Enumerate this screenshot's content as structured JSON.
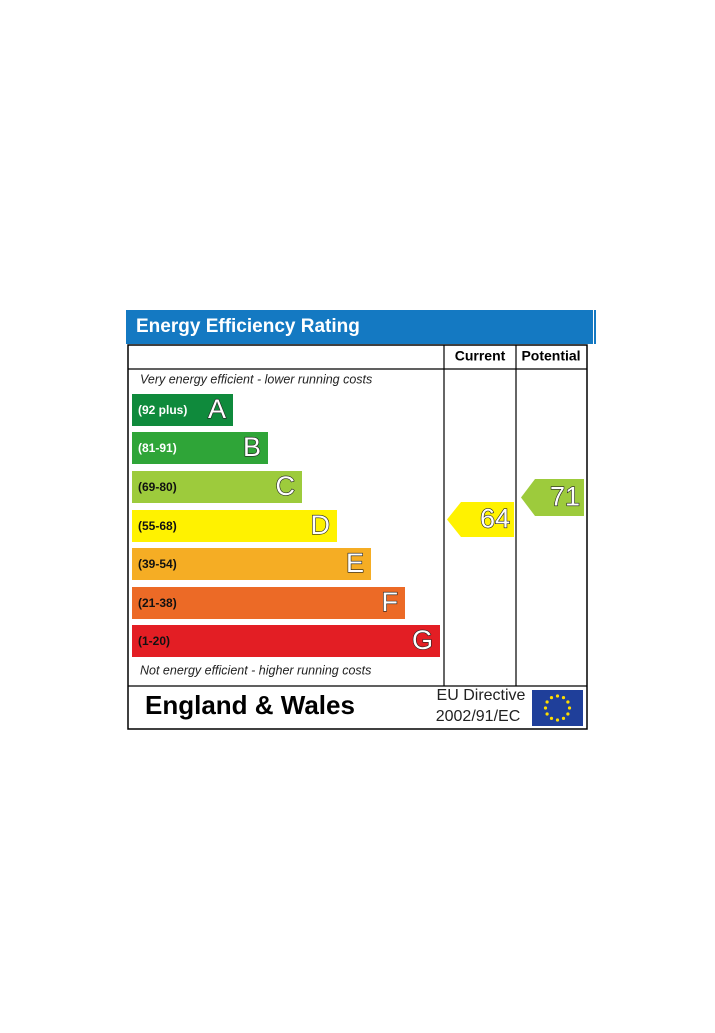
{
  "header": {
    "title": "Energy Efficiency Rating"
  },
  "columns": {
    "current": "Current",
    "potential": "Potential"
  },
  "top_note": "Very energy efficient - lower running costs",
  "bottom_note": "Not energy efficient - higher running costs",
  "bands": [
    {
      "range": "(92 plus)",
      "letter": "A",
      "color": "#0f8a3c"
    },
    {
      "range": "(81-91)",
      "letter": "B",
      "color": "#2fa538"
    },
    {
      "range": "(69-80)",
      "letter": "C",
      "color": "#9dcb3c"
    },
    {
      "range": "(55-68)",
      "letter": "D",
      "color": "#fff200"
    },
    {
      "range": "(39-54)",
      "letter": "E",
      "color": "#f5ad24"
    },
    {
      "range": "(21-38)",
      "letter": "F",
      "color": "#ec6a26"
    },
    {
      "range": "(1-20)",
      "letter": "G",
      "color": "#e31e24"
    }
  ],
  "current": {
    "value": 64,
    "color": "#fff200"
  },
  "potential": {
    "value": 71,
    "color": "#9dcb3c"
  },
  "footer": {
    "region": "England & Wales",
    "directive": [
      "EU Directive",
      "2002/91/EC"
    ]
  }
}
